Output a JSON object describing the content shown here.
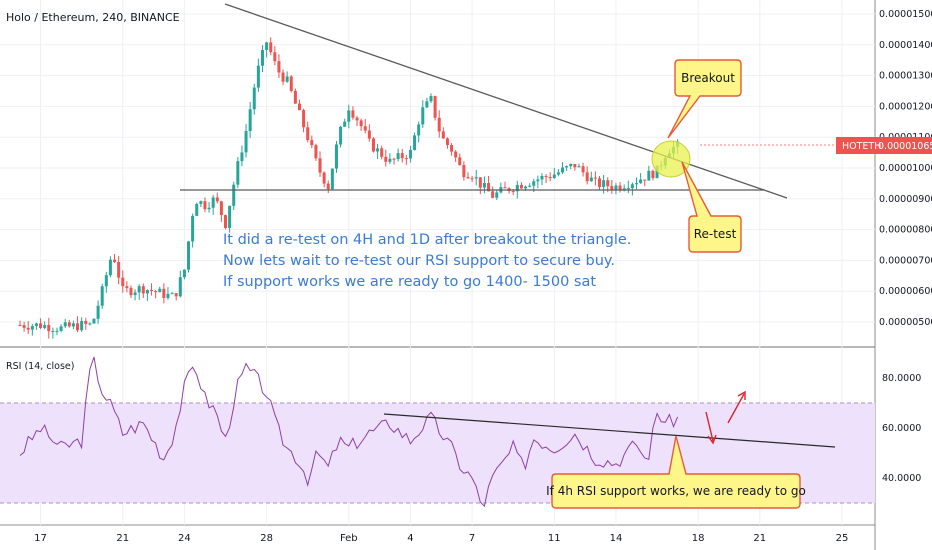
{
  "header": {
    "title": "Holo / Ethereum, 240, BINANCE"
  },
  "rsi_panel": {
    "label": "RSI (14, close)"
  },
  "price_tag": {
    "symbol": "HOTETH",
    "value": "0.00001065"
  },
  "annotation": {
    "lines": [
      "It did a re-test on 4H and 1D after breakout the triangle.",
      "Now lets wait to re-test our RSI support to secure buy.",
      "If support works we are ready to go 1400- 1500 sat"
    ]
  },
  "callouts": {
    "breakout": "Breakout",
    "retest": "Re-test",
    "rsi_note": "If 4h RSI support works, we are ready to go"
  },
  "colors": {
    "up": "#26a69a",
    "down": "#ef5350",
    "rsi_line": "#8e3fa6",
    "rsi_band": "#ede1fb",
    "callout_fill": "#fff68a",
    "callout_border": "#e85a3a",
    "price_tag": "#ef5350",
    "annotation_text": "#3a7bd5"
  },
  "chart_data": [
    {
      "type": "candlestick",
      "title": "Holo / Ethereum, 240, BINANCE",
      "y_ticks": [
        "0.00001500",
        "0.00001400",
        "0.00001300",
        "0.00001200",
        "0.00001100",
        "0.00001000",
        "0.00000900",
        "0.00000800",
        "0.00000700",
        "0.00000600",
        "0.00000500"
      ],
      "ylim": [
        4.7e-06,
        1.53e-05
      ],
      "x_ticks": [
        "17",
        "21",
        "24",
        "28",
        "Feb",
        "4",
        "7",
        "11",
        "14",
        "18",
        "21",
        "25"
      ],
      "last_price": 1.065e-05,
      "series_approx_close": [
        [
          16.0,
          4.9e-06
        ],
        [
          17.0,
          4.9e-06
        ],
        [
          18.0,
          4.8e-06
        ],
        [
          19.0,
          4.9e-06
        ],
        [
          19.5,
          4.9e-06
        ],
        [
          20.0,
          6e-06
        ],
        [
          20.5,
          7.3e-06
        ],
        [
          21.0,
          6e-06
        ],
        [
          22.0,
          6.1e-06
        ],
        [
          23.0,
          5.9e-06
        ],
        [
          23.5,
          5.8e-06
        ],
        [
          24.0,
          6.7e-06
        ],
        [
          24.5,
          9e-06
        ],
        [
          25.0,
          8.8e-06
        ],
        [
          25.5,
          9e-06
        ],
        [
          26.0,
          8.2e-06
        ],
        [
          26.5,
          9.8e-06
        ],
        [
          27.0,
          1.12e-05
        ],
        [
          27.5,
          1.3e-05
        ],
        [
          28.0,
          1.41e-05
        ],
        [
          28.5,
          1.32e-05
        ],
        [
          29.0,
          1.28e-05
        ],
        [
          30.0,
          1.1e-05
        ],
        [
          30.5,
          1e-05
        ],
        [
          31.0,
          9.4e-06
        ],
        [
          31.5,
          1.1e-05
        ],
        [
          32.0,
          1.2e-05
        ],
        [
          32.5,
          1.15e-05
        ],
        [
          33.0,
          1.08e-05
        ],
        [
          34.0,
          1.02e-05
        ],
        [
          35.0,
          1.05e-05
        ],
        [
          35.5,
          1.18e-05
        ],
        [
          36.0,
          1.22e-05
        ],
        [
          36.5,
          1.1e-05
        ],
        [
          37.0,
          1.06e-05
        ],
        [
          37.5,
          9.9e-06
        ],
        [
          38.0,
          9.8e-06
        ],
        [
          38.5,
          9.4e-06
        ],
        [
          39.0,
          9.1e-06
        ],
        [
          40.0,
          9.4e-06
        ],
        [
          41.0,
          9.6e-06
        ],
        [
          42.0,
          9.8e-06
        ],
        [
          43.0,
          1.01e-05
        ],
        [
          44.0,
          9.5e-06
        ],
        [
          45.0,
          9.4e-06
        ],
        [
          46.0,
          9.6e-06
        ],
        [
          47.0,
          9.9e-06
        ],
        [
          47.5,
          1.06e-05
        ],
        [
          48.0,
          1.07e-05
        ]
      ]
    },
    {
      "type": "line",
      "title": "RSI (14, close)",
      "y_ticks": [
        "80.0000",
        "60.0000",
        "40.0000"
      ],
      "ylim": [
        20,
        95
      ],
      "band": [
        30,
        70
      ],
      "series_approx": [
        [
          16.0,
          50
        ],
        [
          17.0,
          60
        ],
        [
          18.0,
          52
        ],
        [
          19.0,
          55
        ],
        [
          19.5,
          89
        ],
        [
          20.0,
          75
        ],
        [
          20.5,
          68
        ],
        [
          21.0,
          58
        ],
        [
          22.0,
          62
        ],
        [
          23.0,
          48
        ],
        [
          23.5,
          58
        ],
        [
          24.0,
          76
        ],
        [
          24.5,
          86
        ],
        [
          25.0,
          72
        ],
        [
          25.5,
          67
        ],
        [
          26.0,
          55
        ],
        [
          26.5,
          75
        ],
        [
          27.0,
          84
        ],
        [
          27.5,
          80
        ],
        [
          28.0,
          74
        ],
        [
          28.5,
          60
        ],
        [
          29.0,
          52
        ],
        [
          29.5,
          48
        ],
        [
          30.0,
          40
        ],
        [
          30.5,
          50
        ],
        [
          31.0,
          44
        ],
        [
          31.5,
          55
        ],
        [
          32.0,
          52
        ],
        [
          33.0,
          58
        ],
        [
          34.0,
          62
        ],
        [
          35.0,
          55
        ],
        [
          35.5,
          60
        ],
        [
          36.0,
          64
        ],
        [
          36.5,
          58
        ],
        [
          37.0,
          52
        ],
        [
          37.5,
          44
        ],
        [
          38.0,
          40
        ],
        [
          38.5,
          28
        ],
        [
          39.0,
          40
        ],
        [
          39.5,
          46
        ],
        [
          40.0,
          52
        ],
        [
          40.5,
          44
        ],
        [
          41.0,
          56
        ],
        [
          42.0,
          52
        ],
        [
          43.0,
          58
        ],
        [
          44.0,
          48
        ],
        [
          45.0,
          46
        ],
        [
          46.0,
          54
        ],
        [
          46.5,
          46
        ],
        [
          47.0,
          66
        ],
        [
          47.5,
          62
        ],
        [
          48.0,
          64
        ]
      ]
    }
  ]
}
